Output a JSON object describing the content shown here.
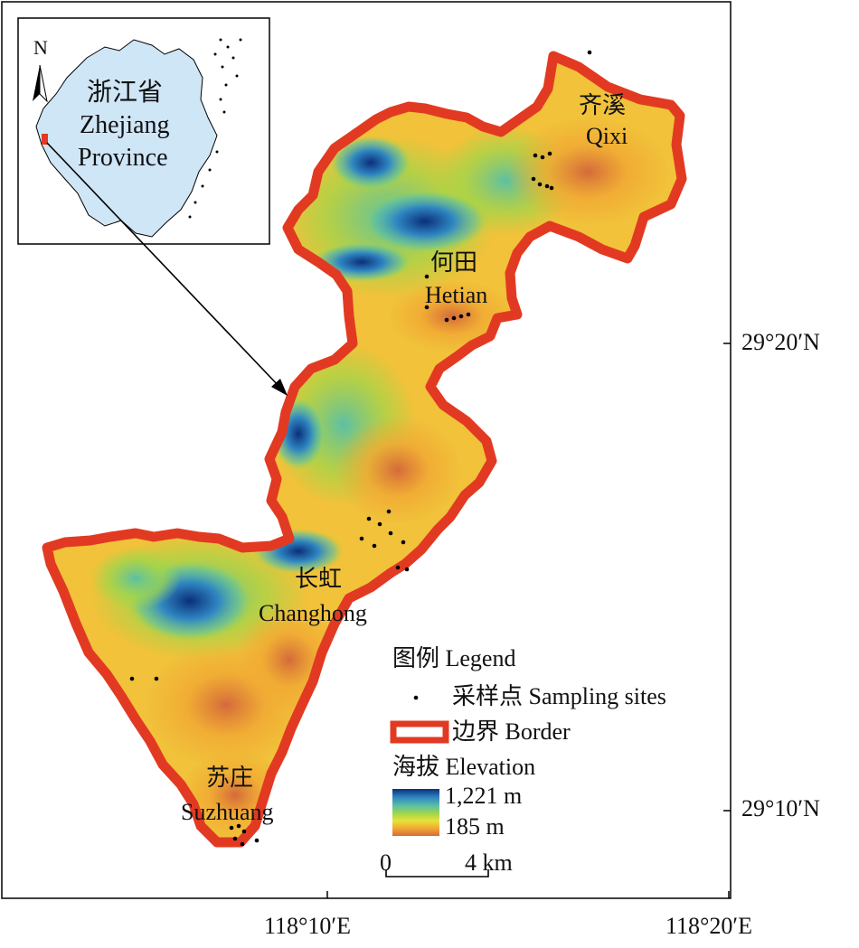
{
  "inset": {
    "name_cn": "浙江省",
    "name_en_1": "Zhejiang",
    "name_en_2": "Province",
    "north": "N",
    "fill_color": "#cfe6f7"
  },
  "places": [
    {
      "cn": "齐溪",
      "en": "Qixi"
    },
    {
      "cn": "何田",
      "en": "Hetian"
    },
    {
      "cn": "长虹",
      "en": "Changhong"
    },
    {
      "cn": "苏庄",
      "en": "Suzhuang"
    }
  ],
  "axes": {
    "lat": [
      "29°20′N",
      "29°10′N"
    ],
    "lon": [
      "118°10′E",
      "118°20′E"
    ]
  },
  "legend": {
    "title": "图例 Legend",
    "sampling": "采样点 Sampling sites",
    "border": "边界 Border",
    "elevation": "海拔 Elevation",
    "max": "1,221 m",
    "min": "185 m",
    "border_color": "#e23a22",
    "ramp": [
      "#0b2f7a",
      "#2f86c2",
      "#5cc0a4",
      "#9fd64a",
      "#e8e23a",
      "#f1a833",
      "#d46a3a"
    ]
  },
  "scalebar": {
    "left": "0",
    "right": "4 km"
  }
}
